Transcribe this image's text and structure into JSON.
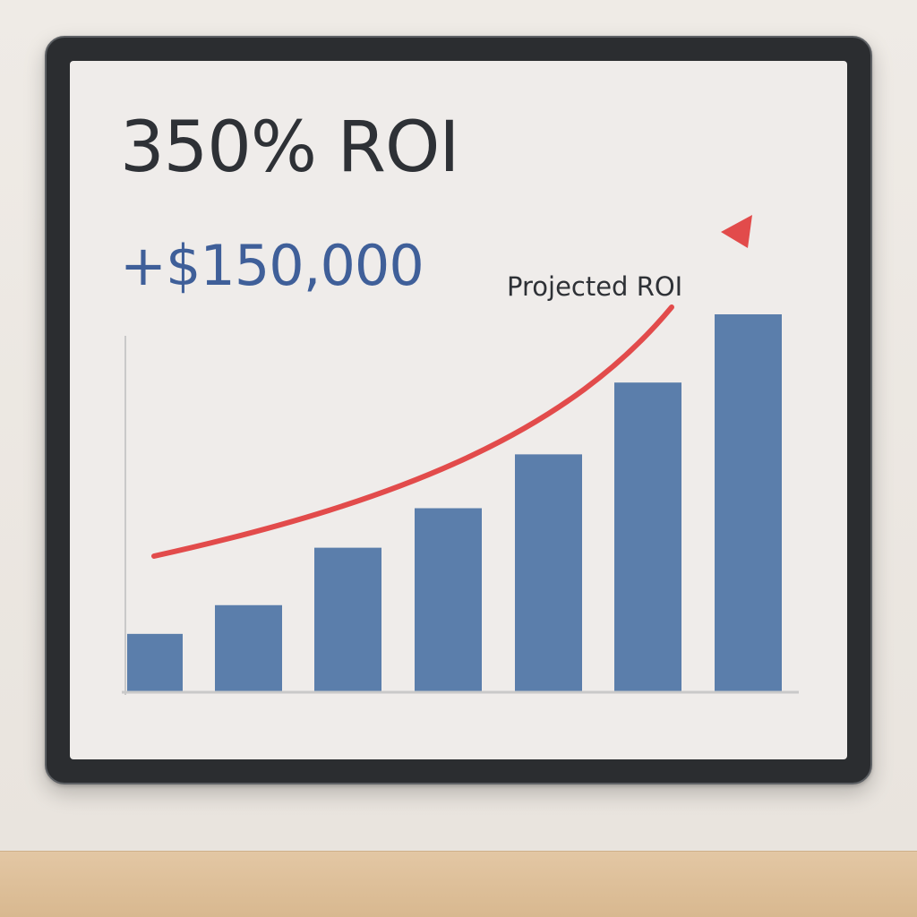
{
  "headline": "350% ROI",
  "subheadline": "+$150,000",
  "colors": {
    "bar": "#5b7eab",
    "trend_arrow": "#e24b4b",
    "headline": "#2e3136",
    "subheadline": "#3f5f99",
    "axis": "#c9c9c9"
  },
  "chart_data": {
    "type": "bar",
    "title": "",
    "xlabel": "",
    "ylabel": "",
    "categories": [
      "",
      "",
      "",
      "",
      "",
      "",
      ""
    ],
    "values": [
      16,
      24,
      40,
      51,
      66,
      86,
      105
    ],
    "ylim": [
      0,
      105
    ],
    "grid": false,
    "legend": "none",
    "annotations": [
      {
        "text": "Projected ROI",
        "type": "trend-arrow",
        "direction": "up-right"
      }
    ]
  }
}
